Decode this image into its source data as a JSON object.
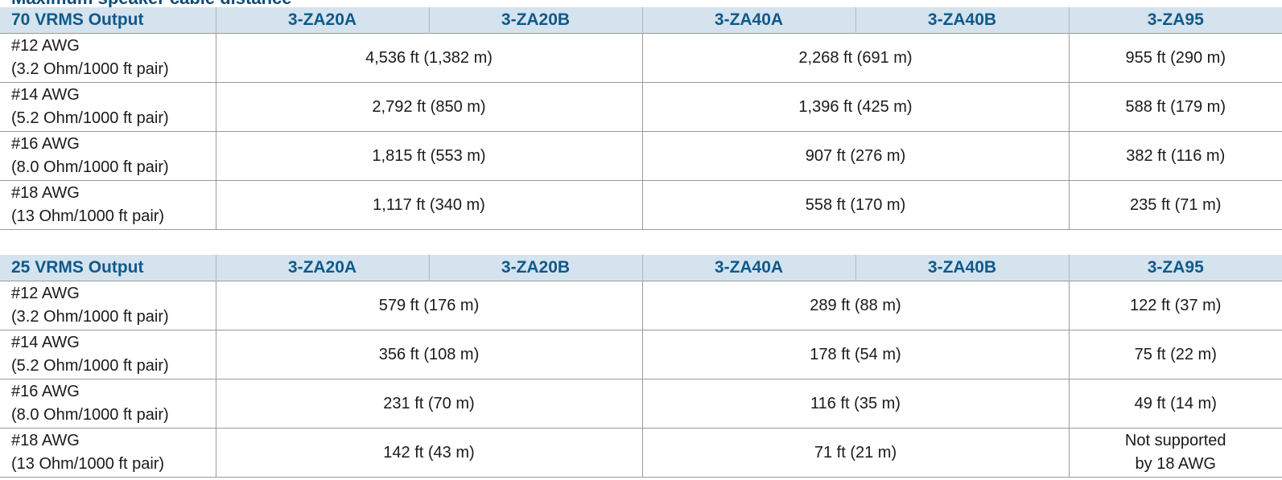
{
  "top_clipped_text": "Maximum speaker cable distance",
  "tables": [
    {
      "header": [
        "70 VRMS Output",
        "3-ZA20A",
        "3-ZA20B",
        "3-ZA40A",
        "3-ZA40B",
        "3-ZA95"
      ],
      "rows": [
        {
          "gauge": "#12 AWG",
          "spec": "(3.2 Ohm/1000 ft pair)",
          "za20": "4,536 ft (1,382 m)",
          "za40": "2,268 ft (691 m)",
          "za95": "955 ft (290 m)"
        },
        {
          "gauge": "#14 AWG",
          "spec": "(5.2 Ohm/1000 ft pair)",
          "za20": "2,792 ft (850 m)",
          "za40": "1,396 ft (425 m)",
          "za95": "588 ft (179 m)"
        },
        {
          "gauge": "#16 AWG",
          "spec": "(8.0 Ohm/1000 ft pair)",
          "za20": "1,815 ft (553 m)",
          "za40": "907 ft (276 m)",
          "za95": "382 ft (116 m)"
        },
        {
          "gauge": "#18 AWG",
          "spec": "(13 Ohm/1000 ft pair)",
          "za20": "1,117 ft (340 m)",
          "za40": "558 ft (170 m)",
          "za95": "235 ft (71 m)"
        }
      ]
    },
    {
      "header": [
        "25 VRMS Output",
        "3-ZA20A",
        "3-ZA20B",
        "3-ZA40A",
        "3-ZA40B",
        "3-ZA95"
      ],
      "rows": [
        {
          "gauge": "#12 AWG",
          "spec": "(3.2 Ohm/1000 ft pair)",
          "za20": "579 ft (176 m)",
          "za40": "289 ft (88 m)",
          "za95": "122 ft (37 m)"
        },
        {
          "gauge": "#14 AWG",
          "spec": "(5.2 Ohm/1000 ft pair)",
          "za20": "356 ft (108 m)",
          "za40": "178 ft (54 m)",
          "za95": "75 ft (22 m)"
        },
        {
          "gauge": "#16 AWG",
          "spec": "(8.0 Ohm/1000 ft pair)",
          "za20": "231 ft (70 m)",
          "za40": "116 ft (35 m)",
          "za95": "49 ft (14 m)"
        },
        {
          "gauge": "#18 AWG",
          "spec": "(13 Ohm/1000 ft pair)",
          "za20": "142 ft (43 m)",
          "za40": "71 ft (21 m)",
          "za95_line1": "Not supported",
          "za95_line2": "by 18 AWG"
        }
      ]
    }
  ]
}
